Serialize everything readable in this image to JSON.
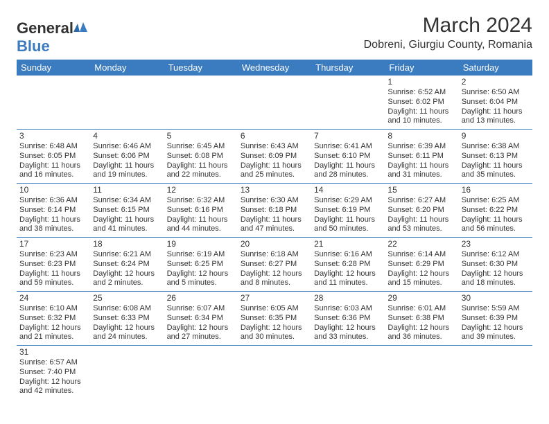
{
  "logo": {
    "general": "General",
    "blue": "Blue"
  },
  "title": "March 2024",
  "location": "Dobreni, Giurgiu County, Romania",
  "colors": {
    "header_bg": "#3b7bbf",
    "header_text": "#ffffff",
    "line": "#3b7bbf",
    "text": "#333333"
  },
  "day_headers": [
    "Sunday",
    "Monday",
    "Tuesday",
    "Wednesday",
    "Thursday",
    "Friday",
    "Saturday"
  ],
  "weeks": [
    [
      null,
      null,
      null,
      null,
      null,
      {
        "n": "1",
        "sr": "Sunrise: 6:52 AM",
        "ss": "Sunset: 6:02 PM",
        "d1": "Daylight: 11 hours",
        "d2": "and 10 minutes."
      },
      {
        "n": "2",
        "sr": "Sunrise: 6:50 AM",
        "ss": "Sunset: 6:04 PM",
        "d1": "Daylight: 11 hours",
        "d2": "and 13 minutes."
      }
    ],
    [
      {
        "n": "3",
        "sr": "Sunrise: 6:48 AM",
        "ss": "Sunset: 6:05 PM",
        "d1": "Daylight: 11 hours",
        "d2": "and 16 minutes."
      },
      {
        "n": "4",
        "sr": "Sunrise: 6:46 AM",
        "ss": "Sunset: 6:06 PM",
        "d1": "Daylight: 11 hours",
        "d2": "and 19 minutes."
      },
      {
        "n": "5",
        "sr": "Sunrise: 6:45 AM",
        "ss": "Sunset: 6:08 PM",
        "d1": "Daylight: 11 hours",
        "d2": "and 22 minutes."
      },
      {
        "n": "6",
        "sr": "Sunrise: 6:43 AM",
        "ss": "Sunset: 6:09 PM",
        "d1": "Daylight: 11 hours",
        "d2": "and 25 minutes."
      },
      {
        "n": "7",
        "sr": "Sunrise: 6:41 AM",
        "ss": "Sunset: 6:10 PM",
        "d1": "Daylight: 11 hours",
        "d2": "and 28 minutes."
      },
      {
        "n": "8",
        "sr": "Sunrise: 6:39 AM",
        "ss": "Sunset: 6:11 PM",
        "d1": "Daylight: 11 hours",
        "d2": "and 31 minutes."
      },
      {
        "n": "9",
        "sr": "Sunrise: 6:38 AM",
        "ss": "Sunset: 6:13 PM",
        "d1": "Daylight: 11 hours",
        "d2": "and 35 minutes."
      }
    ],
    [
      {
        "n": "10",
        "sr": "Sunrise: 6:36 AM",
        "ss": "Sunset: 6:14 PM",
        "d1": "Daylight: 11 hours",
        "d2": "and 38 minutes."
      },
      {
        "n": "11",
        "sr": "Sunrise: 6:34 AM",
        "ss": "Sunset: 6:15 PM",
        "d1": "Daylight: 11 hours",
        "d2": "and 41 minutes."
      },
      {
        "n": "12",
        "sr": "Sunrise: 6:32 AM",
        "ss": "Sunset: 6:16 PM",
        "d1": "Daylight: 11 hours",
        "d2": "and 44 minutes."
      },
      {
        "n": "13",
        "sr": "Sunrise: 6:30 AM",
        "ss": "Sunset: 6:18 PM",
        "d1": "Daylight: 11 hours",
        "d2": "and 47 minutes."
      },
      {
        "n": "14",
        "sr": "Sunrise: 6:29 AM",
        "ss": "Sunset: 6:19 PM",
        "d1": "Daylight: 11 hours",
        "d2": "and 50 minutes."
      },
      {
        "n": "15",
        "sr": "Sunrise: 6:27 AM",
        "ss": "Sunset: 6:20 PM",
        "d1": "Daylight: 11 hours",
        "d2": "and 53 minutes."
      },
      {
        "n": "16",
        "sr": "Sunrise: 6:25 AM",
        "ss": "Sunset: 6:22 PM",
        "d1": "Daylight: 11 hours",
        "d2": "and 56 minutes."
      }
    ],
    [
      {
        "n": "17",
        "sr": "Sunrise: 6:23 AM",
        "ss": "Sunset: 6:23 PM",
        "d1": "Daylight: 11 hours",
        "d2": "and 59 minutes."
      },
      {
        "n": "18",
        "sr": "Sunrise: 6:21 AM",
        "ss": "Sunset: 6:24 PM",
        "d1": "Daylight: 12 hours",
        "d2": "and 2 minutes."
      },
      {
        "n": "19",
        "sr": "Sunrise: 6:19 AM",
        "ss": "Sunset: 6:25 PM",
        "d1": "Daylight: 12 hours",
        "d2": "and 5 minutes."
      },
      {
        "n": "20",
        "sr": "Sunrise: 6:18 AM",
        "ss": "Sunset: 6:27 PM",
        "d1": "Daylight: 12 hours",
        "d2": "and 8 minutes."
      },
      {
        "n": "21",
        "sr": "Sunrise: 6:16 AM",
        "ss": "Sunset: 6:28 PM",
        "d1": "Daylight: 12 hours",
        "d2": "and 11 minutes."
      },
      {
        "n": "22",
        "sr": "Sunrise: 6:14 AM",
        "ss": "Sunset: 6:29 PM",
        "d1": "Daylight: 12 hours",
        "d2": "and 15 minutes."
      },
      {
        "n": "23",
        "sr": "Sunrise: 6:12 AM",
        "ss": "Sunset: 6:30 PM",
        "d1": "Daylight: 12 hours",
        "d2": "and 18 minutes."
      }
    ],
    [
      {
        "n": "24",
        "sr": "Sunrise: 6:10 AM",
        "ss": "Sunset: 6:32 PM",
        "d1": "Daylight: 12 hours",
        "d2": "and 21 minutes."
      },
      {
        "n": "25",
        "sr": "Sunrise: 6:08 AM",
        "ss": "Sunset: 6:33 PM",
        "d1": "Daylight: 12 hours",
        "d2": "and 24 minutes."
      },
      {
        "n": "26",
        "sr": "Sunrise: 6:07 AM",
        "ss": "Sunset: 6:34 PM",
        "d1": "Daylight: 12 hours",
        "d2": "and 27 minutes."
      },
      {
        "n": "27",
        "sr": "Sunrise: 6:05 AM",
        "ss": "Sunset: 6:35 PM",
        "d1": "Daylight: 12 hours",
        "d2": "and 30 minutes."
      },
      {
        "n": "28",
        "sr": "Sunrise: 6:03 AM",
        "ss": "Sunset: 6:36 PM",
        "d1": "Daylight: 12 hours",
        "d2": "and 33 minutes."
      },
      {
        "n": "29",
        "sr": "Sunrise: 6:01 AM",
        "ss": "Sunset: 6:38 PM",
        "d1": "Daylight: 12 hours",
        "d2": "and 36 minutes."
      },
      {
        "n": "30",
        "sr": "Sunrise: 5:59 AM",
        "ss": "Sunset: 6:39 PM",
        "d1": "Daylight: 12 hours",
        "d2": "and 39 minutes."
      }
    ],
    [
      {
        "n": "31",
        "sr": "Sunrise: 6:57 AM",
        "ss": "Sunset: 7:40 PM",
        "d1": "Daylight: 12 hours",
        "d2": "and 42 minutes."
      },
      null,
      null,
      null,
      null,
      null,
      null
    ]
  ]
}
